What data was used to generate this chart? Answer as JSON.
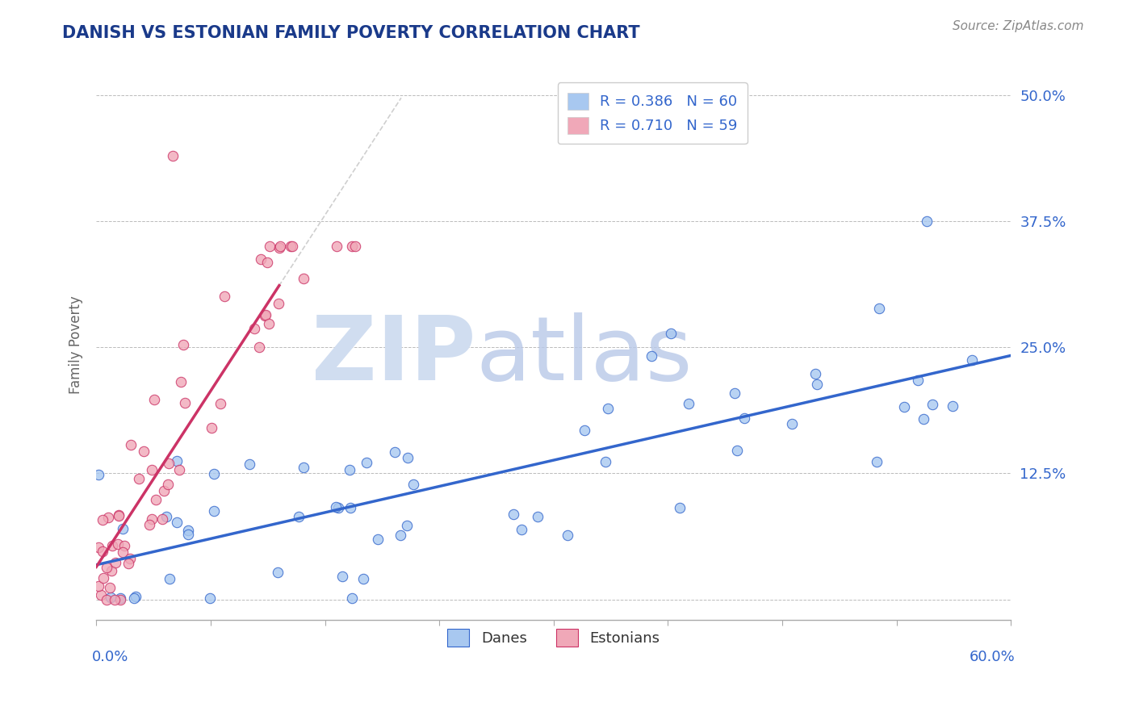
{
  "title": "DANISH VS ESTONIAN FAMILY POVERTY CORRELATION CHART",
  "source_text": "Source: ZipAtlas.com",
  "ylabel": "Family Poverty",
  "R_danes": 0.386,
  "N_danes": 60,
  "R_estonians": 0.71,
  "N_estonians": 59,
  "title_color": "#1a3a8a",
  "danes_color": "#a8c8f0",
  "estonians_color": "#f0a8b8",
  "danes_line_color": "#3366cc",
  "estonians_line_color": "#cc3366",
  "grid_color": "#bbbbbb",
  "watermark_zip_color": "#d0ddf0",
  "watermark_atlas_color": "#b8c8e8",
  "yticks": [
    0.0,
    0.125,
    0.25,
    0.375,
    0.5
  ],
  "ytick_labels_right": [
    "",
    "12.5%",
    "25.0%",
    "37.5%",
    "50.0%"
  ],
  "xlim": [
    0.0,
    0.6
  ],
  "ylim": [
    -0.02,
    0.525
  ]
}
